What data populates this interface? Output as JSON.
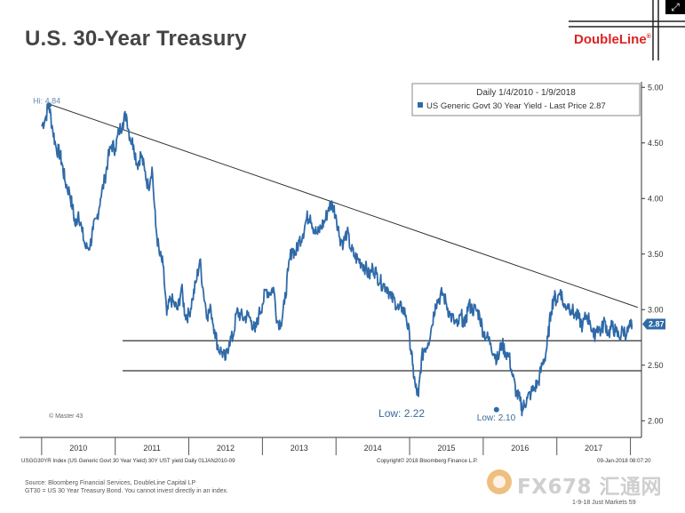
{
  "slide": {
    "title": "U.S. 30-Year Treasury",
    "logo": "DoubleLine",
    "logo_mark": "®",
    "expand_icon": "expand-icon",
    "source_line1": "Source: Bloomberg Financial Services, DoubleLine Capital LP",
    "source_line2": "GT30 = US 30 Year Treasury Bond. You cannot invest directly in an index.",
    "footer": "1-9-18 Just Markets   59",
    "watermark": "FX678 汇通网"
  },
  "colors": {
    "line": "#2f6aa8",
    "title": "#444444",
    "logo": "#dd2222",
    "grid": "#333333"
  },
  "chart_data": {
    "type": "line",
    "title": "Daily 1/4/2010 - 1/9/2018",
    "series": [
      {
        "name": "US Generic Govt 30 Year Yield - Last Price 2.87",
        "x": [
          2010.0,
          2010.05,
          2010.1,
          2010.15,
          2010.2,
          2010.25,
          2010.28,
          2010.32,
          2010.38,
          2010.42,
          2010.46,
          2010.5,
          2010.55,
          2010.6,
          2010.66,
          2010.7,
          2010.75,
          2010.8,
          2010.86,
          2010.9,
          2010.95,
          2011.0,
          2011.05,
          2011.1,
          2011.15,
          2011.2,
          2011.25,
          2011.3,
          2011.35,
          2011.4,
          2011.45,
          2011.5,
          2011.55,
          2011.6,
          2011.65,
          2011.7,
          2011.75,
          2011.8,
          2011.85,
          2011.9,
          2011.95,
          2012.0,
          2012.05,
          2012.1,
          2012.15,
          2012.2,
          2012.25,
          2012.3,
          2012.35,
          2012.4,
          2012.45,
          2012.5,
          2012.55,
          2012.6,
          2012.65,
          2012.7,
          2012.75,
          2012.8,
          2012.85,
          2012.9,
          2012.95,
          2013.0,
          2013.05,
          2013.1,
          2013.15,
          2013.2,
          2013.25,
          2013.3,
          2013.35,
          2013.4,
          2013.45,
          2013.5,
          2013.55,
          2013.6,
          2013.65,
          2013.7,
          2013.75,
          2013.8,
          2013.85,
          2013.9,
          2013.95,
          2014.0,
          2014.05,
          2014.1,
          2014.15,
          2014.2,
          2014.25,
          2014.3,
          2014.35,
          2014.4,
          2014.45,
          2014.5,
          2014.55,
          2014.6,
          2014.65,
          2014.7,
          2014.75,
          2014.8,
          2014.85,
          2014.9,
          2014.95,
          2015.0,
          2015.04,
          2015.08,
          2015.12,
          2015.16,
          2015.2,
          2015.25,
          2015.3,
          2015.35,
          2015.4,
          2015.45,
          2015.5,
          2015.55,
          2015.6,
          2015.65,
          2015.7,
          2015.75,
          2015.8,
          2015.85,
          2015.9,
          2015.95,
          2016.0,
          2016.05,
          2016.1,
          2016.15,
          2016.2,
          2016.25,
          2016.3,
          2016.35,
          2016.4,
          2016.45,
          2016.5,
          2016.53,
          2016.56,
          2016.6,
          2016.65,
          2016.7,
          2016.75,
          2016.8,
          2016.85,
          2016.88,
          2016.92,
          2016.96,
          2017.0,
          2017.05,
          2017.1,
          2017.15,
          2017.2,
          2017.25,
          2017.3,
          2017.35,
          2017.4,
          2017.45,
          2017.5,
          2017.55,
          2017.6,
          2017.65,
          2017.7,
          2017.75,
          2017.8,
          2017.85,
          2017.9,
          2017.95,
          2018.0,
          2018.02
        ],
        "values": [
          4.65,
          4.72,
          4.84,
          4.62,
          4.45,
          4.4,
          4.3,
          4.15,
          4.05,
          3.92,
          3.75,
          3.88,
          3.7,
          3.55,
          3.58,
          3.72,
          3.82,
          4.0,
          4.18,
          4.35,
          4.48,
          4.45,
          4.6,
          4.68,
          4.76,
          4.55,
          4.48,
          4.3,
          4.4,
          4.25,
          4.1,
          4.28,
          3.75,
          3.5,
          3.4,
          2.95,
          3.1,
          3.05,
          3.0,
          3.2,
          2.95,
          2.95,
          3.1,
          3.25,
          3.45,
          3.15,
          2.95,
          3.0,
          2.82,
          2.65,
          2.62,
          2.55,
          2.72,
          2.75,
          2.98,
          2.95,
          2.92,
          2.95,
          2.9,
          2.8,
          2.95,
          3.05,
          3.18,
          3.15,
          3.2,
          2.9,
          2.88,
          3.05,
          3.35,
          3.55,
          3.5,
          3.62,
          3.68,
          3.82,
          3.85,
          3.72,
          3.68,
          3.75,
          3.8,
          3.92,
          3.95,
          3.85,
          3.65,
          3.6,
          3.7,
          3.55,
          3.48,
          3.45,
          3.42,
          3.38,
          3.3,
          3.38,
          3.32,
          3.25,
          3.22,
          3.2,
          3.1,
          3.08,
          3.0,
          3.02,
          2.95,
          2.75,
          2.5,
          2.3,
          2.22,
          2.55,
          2.65,
          2.7,
          2.85,
          3.05,
          3.1,
          3.15,
          3.05,
          2.95,
          2.9,
          2.85,
          2.95,
          2.85,
          3.05,
          3.0,
          3.0,
          2.95,
          2.8,
          2.75,
          2.7,
          2.6,
          2.55,
          2.7,
          2.62,
          2.58,
          2.4,
          2.25,
          2.18,
          2.1,
          2.15,
          2.2,
          2.25,
          2.3,
          2.35,
          2.5,
          2.6,
          2.75,
          2.98,
          3.12,
          3.08,
          3.18,
          3.02,
          3.05,
          3.0,
          2.95,
          2.92,
          2.85,
          2.95,
          2.9,
          2.75,
          2.85,
          2.8,
          2.9,
          2.78,
          2.85,
          2.8,
          2.75,
          2.82,
          2.78,
          2.85,
          2.87
        ]
      }
    ],
    "categories": [
      "2010",
      "2011",
      "2012",
      "2013",
      "2014",
      "2015",
      "2016",
      "2017"
    ],
    "y_ticks": [
      "5.00",
      "4.50",
      "4.00",
      "3.50",
      "3.00",
      "2.50",
      "2.00"
    ],
    "ylim": [
      1.85,
      5.05
    ],
    "xlim": [
      2009.7,
      2018.15
    ],
    "last_price_label": "2.87",
    "last_price": 2.87,
    "trendline": {
      "start": [
        2010.1,
        4.85
      ],
      "end": [
        2018.1,
        3.02
      ]
    },
    "support_lines": [
      2.72,
      2.45
    ],
    "annotations": {
      "high": {
        "text": "Hi: 4.84",
        "x": 2010.1,
        "y": 4.84
      },
      "low1": {
        "text": "Low: 2.22",
        "x": 2015.0,
        "y": 2.22
      },
      "low2": {
        "text": "Low: 2.10",
        "x": 2016.18,
        "y": 2.1
      },
      "master": "© Master 43"
    },
    "legend": {
      "title": "Daily 1/4/2010 - 1/9/2018",
      "entry": "US Generic Govt 30 Year Yield - Last Price 2.87",
      "position": "top-right"
    },
    "footer_left": "USGG30YR Index (US Generic Govt 30 Year Yield) 30Y UST yield  Daily 01JAN2010-09",
    "footer_mid": "Copyright© 2018 Bloomberg Finance L.P.",
    "footer_right": "09-Jan-2018 08:07:20"
  }
}
